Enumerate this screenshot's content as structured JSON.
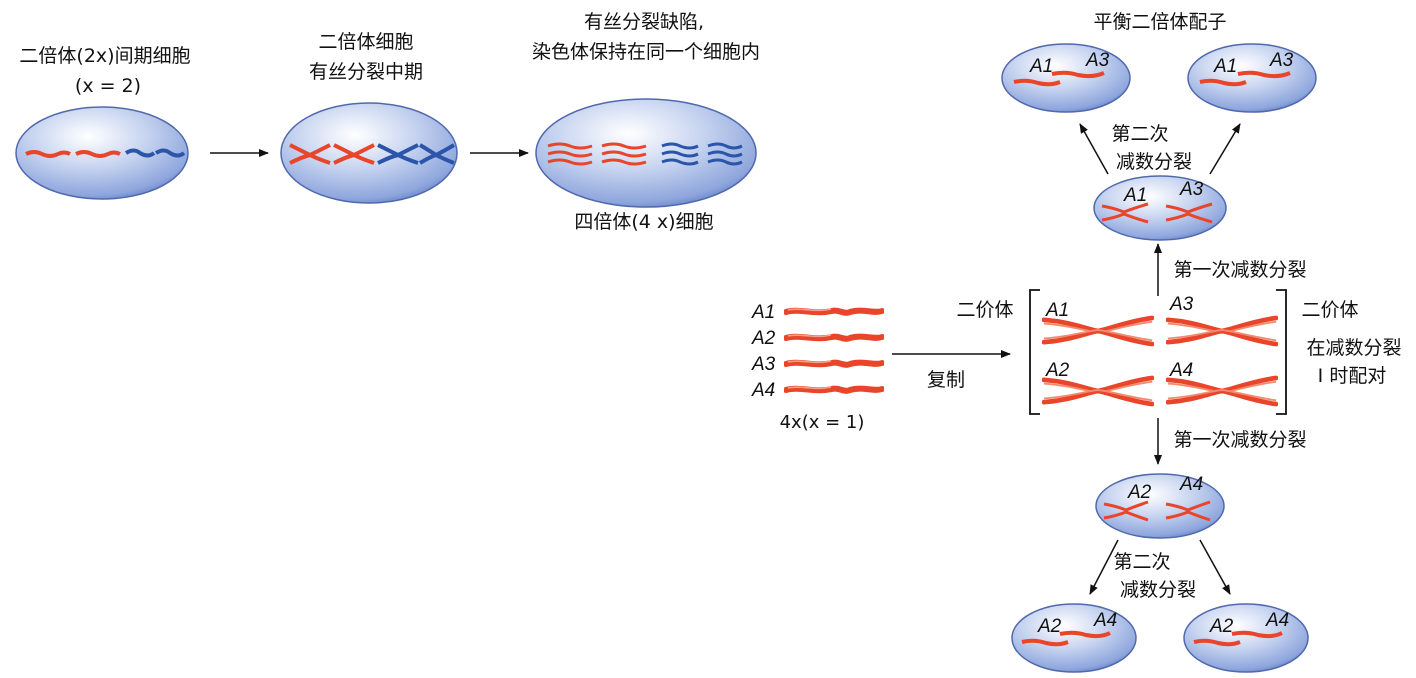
{
  "top_row": {
    "cell1_line1": "二倍体(2x)间期细胞",
    "cell1_line2": "(x = 2)",
    "cell2_line1": "二倍体细胞",
    "cell2_line2": "有丝分裂中期",
    "cell3_line1": "有丝分裂缺陷,",
    "cell3_line2": "染色体保持在同一个细胞内",
    "cell3_caption": "四倍体(4 x)细胞"
  },
  "left_group": {
    "genes": [
      "A1",
      "A2",
      "A3",
      "A4"
    ],
    "ploidy_label": "4x(x = 1)",
    "arrow_label": "复制"
  },
  "bivalent": {
    "left_label": "二价体",
    "right_label": "二价体",
    "pairing_line1": "在减数分裂",
    "pairing_line2": "I 时配对",
    "genes": [
      "A1",
      "A3",
      "A2",
      "A4"
    ]
  },
  "meiosis": {
    "first_division_up": "第一次减数分裂",
    "first_division_down": "第一次减数分裂",
    "second_division_up_line1": "第二次",
    "second_division_up_line2": "减数分裂",
    "second_division_down_line1": "第二次",
    "second_division_down_line2": "减数分裂",
    "gamete_title": "平衡二倍体配子",
    "upper_cell_genes": [
      "A1",
      "A3"
    ],
    "lower_cell_genes": [
      "A2",
      "A4"
    ]
  },
  "colors": {
    "chromosome_red": "#e8452a",
    "chromosome_blue": "#2a55a8",
    "cell_fill": "#a9bde6",
    "cell_edge": "#4a68b0"
  }
}
